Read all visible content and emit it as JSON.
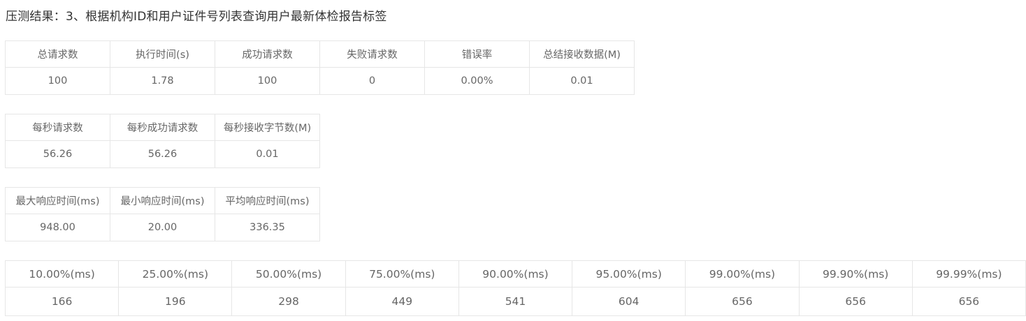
{
  "title": "压测结果：3、根据机构ID和用户证件号列表查询用户最新体检报告标签",
  "summary": {
    "headers": [
      "总请求数",
      "执行时间(s)",
      "成功请求数",
      "失败请求数",
      "错误率",
      "总结接收数据(M)"
    ],
    "values": [
      "100",
      "1.78",
      "100",
      "0",
      "0.00%",
      "0.01"
    ]
  },
  "throughput": {
    "headers": [
      "每秒请求数",
      "每秒成功请求数",
      "每秒接收字节数(M)"
    ],
    "values": [
      "56.26",
      "56.26",
      "0.01"
    ]
  },
  "response": {
    "headers": [
      "最大响应时间(ms)",
      "最小响应时间(ms)",
      "平均响应时间(ms)"
    ],
    "values": [
      "948.00",
      "20.00",
      "336.35"
    ]
  },
  "percentiles": {
    "headers": [
      "10.00%(ms)",
      "25.00%(ms)",
      "50.00%(ms)",
      "75.00%(ms)",
      "90.00%(ms)",
      "95.00%(ms)",
      "99.00%(ms)",
      "99.90%(ms)",
      "99.99%(ms)"
    ],
    "values": [
      "166",
      "196",
      "298",
      "449",
      "541",
      "604",
      "656",
      "656",
      "656"
    ]
  }
}
